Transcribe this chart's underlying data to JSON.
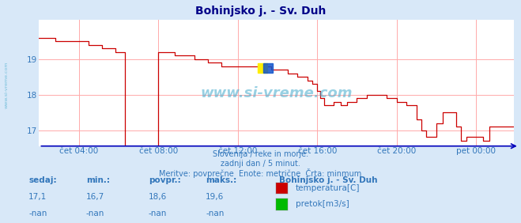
{
  "title": "Bohinjsko j. - Sv. Duh",
  "bg_color": "#d8e8f8",
  "plot_bg_color": "#ffffff",
  "grid_color": "#ffaaaa",
  "axis_color": "#0000bb",
  "title_color": "#000088",
  "text_color": "#3377bb",
  "temp_color": "#cc0000",
  "pretok_color": "#00bb00",
  "watermark_color": "#44aacc",
  "ylim": [
    16.55,
    20.1
  ],
  "yticks": [
    17,
    18,
    19
  ],
  "xtick_positions": [
    24,
    72,
    120,
    168,
    216,
    264
  ],
  "xlabel_ticks": [
    "čet 04:00",
    "čet 08:00",
    "čet 12:00",
    "čet 16:00",
    "čet 20:00",
    "pet 00:00"
  ],
  "footer_lines": [
    "Slovenija / reke in morje.",
    "zadnji dan / 5 minut.",
    "Meritve: povprečne  Enote: metrične  Črta: minmum"
  ],
  "legend_title": "Bohinjsko j. - Sv. Duh",
  "legend_items": [
    {
      "label": "temperatura[C]",
      "color": "#cc0000"
    },
    {
      "label": "pretok[m3/s]",
      "color": "#00bb00"
    }
  ],
  "stats_headers": [
    "sedaj:",
    "min.:",
    "povpr.:",
    "maks.:"
  ],
  "stats_temp": [
    "17,1",
    "16,7",
    "18,6",
    "19,6"
  ],
  "stats_pretok": [
    "-nan",
    "-nan",
    "-nan",
    "-nan"
  ],
  "n_points": 288
}
